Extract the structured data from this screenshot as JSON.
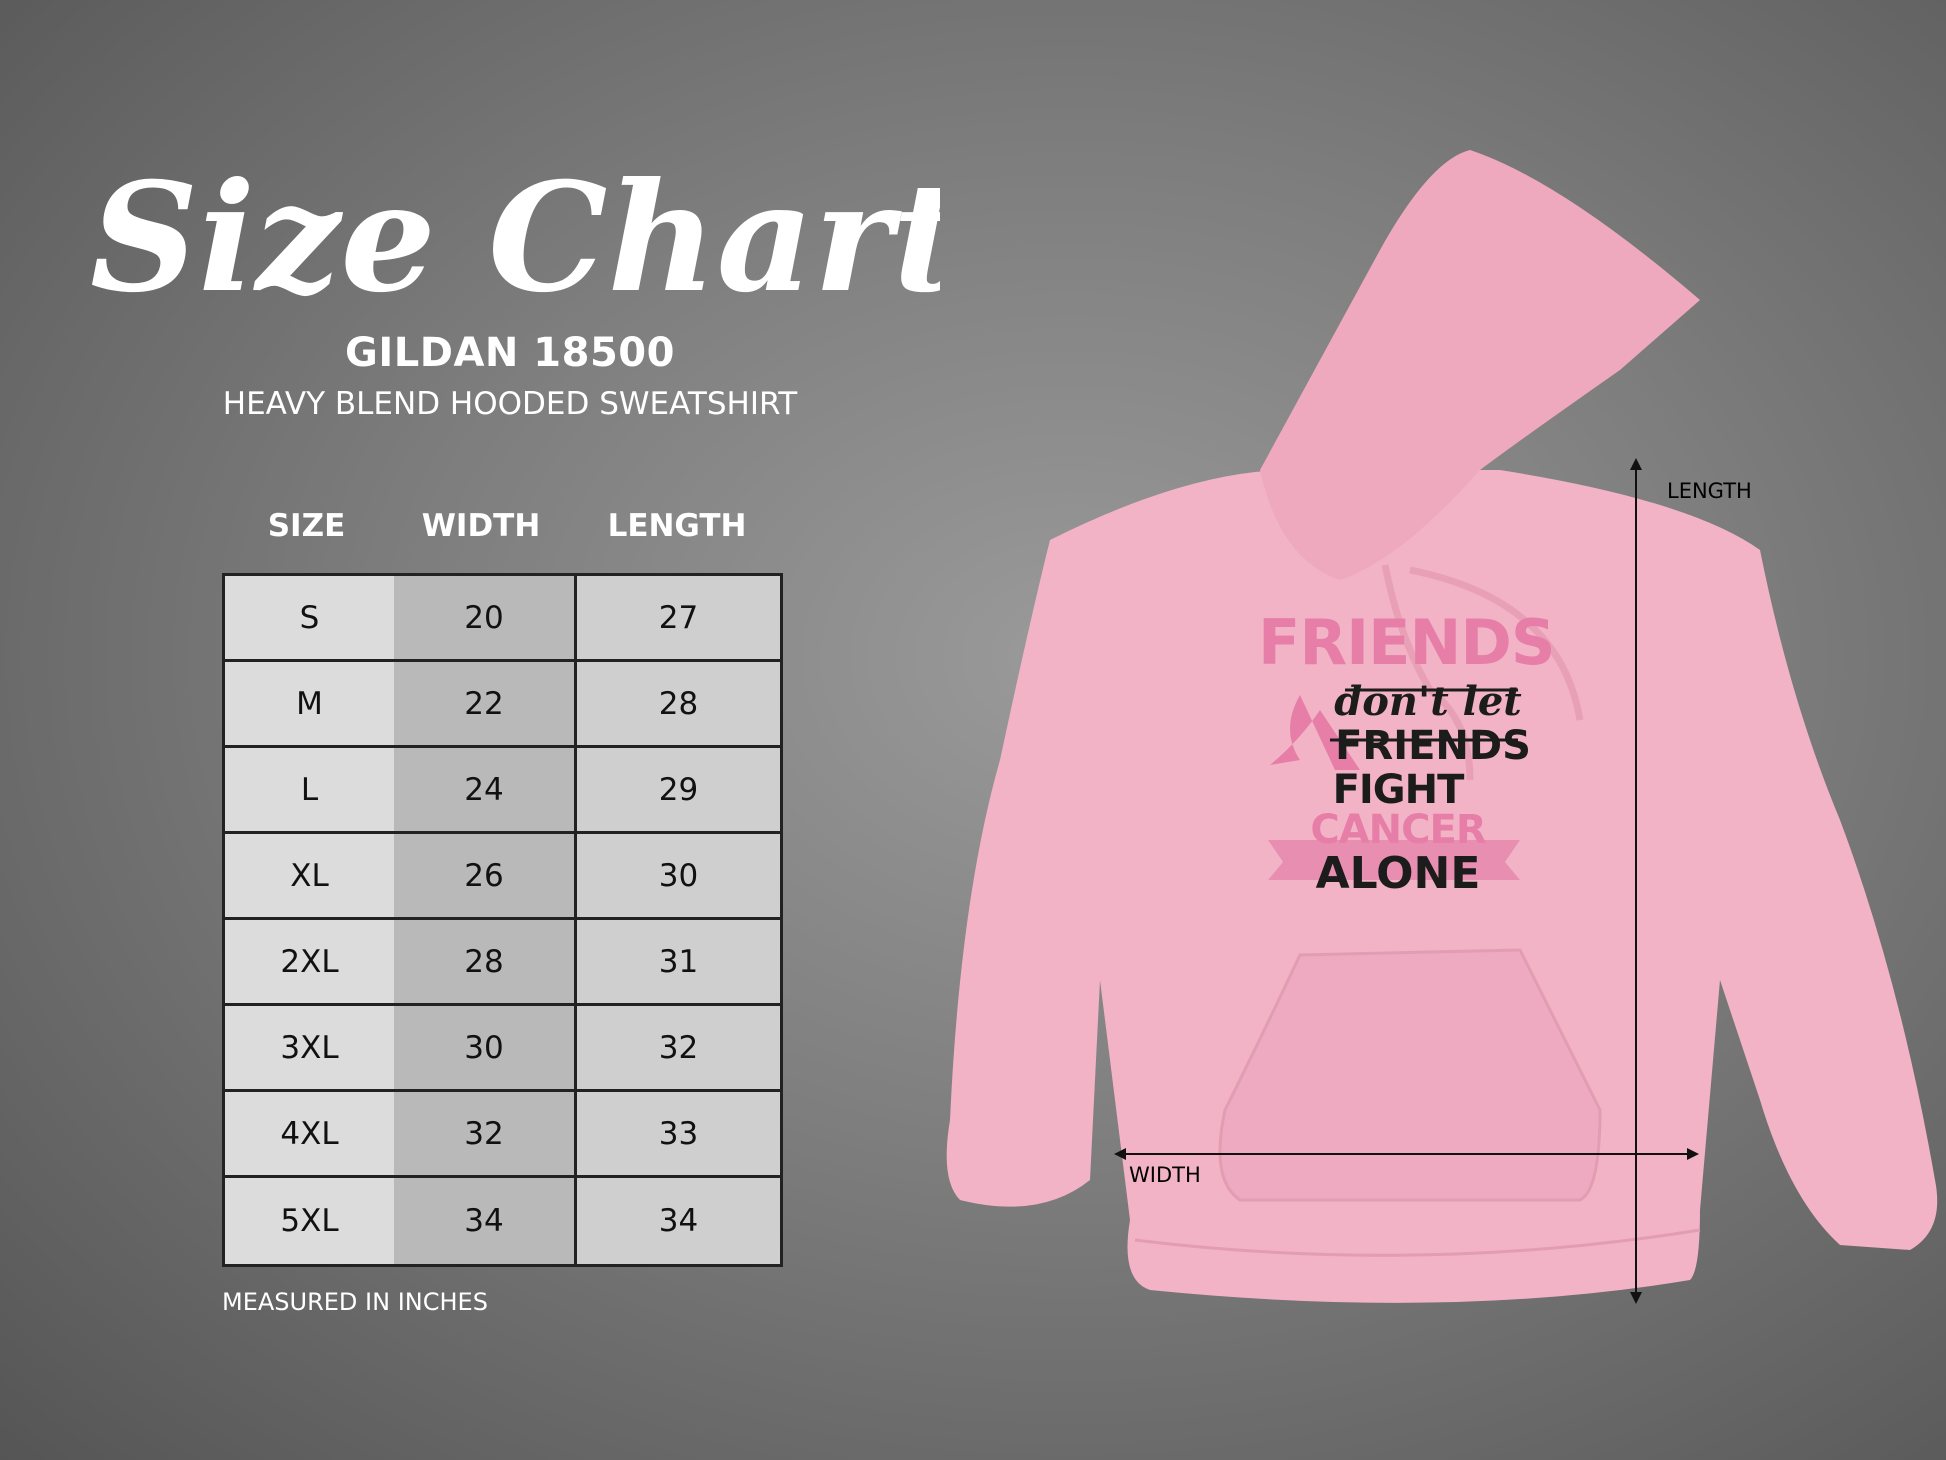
{
  "header": {
    "title": "Size Chart",
    "brand": "GILDAN 18500",
    "subtitle": "HEAVY BLEND HOODED SWEATSHIRT"
  },
  "table": {
    "columns": [
      "SIZE",
      "WIDTH",
      "LENGTH"
    ],
    "rows": [
      [
        "S",
        "20",
        "27"
      ],
      [
        "M",
        "22",
        "28"
      ],
      [
        "L",
        "24",
        "29"
      ],
      [
        "XL",
        "26",
        "30"
      ],
      [
        "2XL",
        "28",
        "31"
      ],
      [
        "3XL",
        "30",
        "32"
      ],
      [
        "4XL",
        "32",
        "33"
      ],
      [
        "5XL",
        "34",
        "34"
      ]
    ],
    "note": "MEASURED IN INCHES"
  },
  "diagram": {
    "length_label": "LENGTH",
    "width_label": "WIDTH",
    "hoodie_color": "#f2b3c6",
    "print": {
      "line1": "FRIENDS",
      "line2": "don't let",
      "line3": "FRIENDS",
      "line4a": "FIGHT",
      "line4b": "CANCER",
      "line5": "ALONE",
      "pink": "#e67ea8"
    }
  }
}
